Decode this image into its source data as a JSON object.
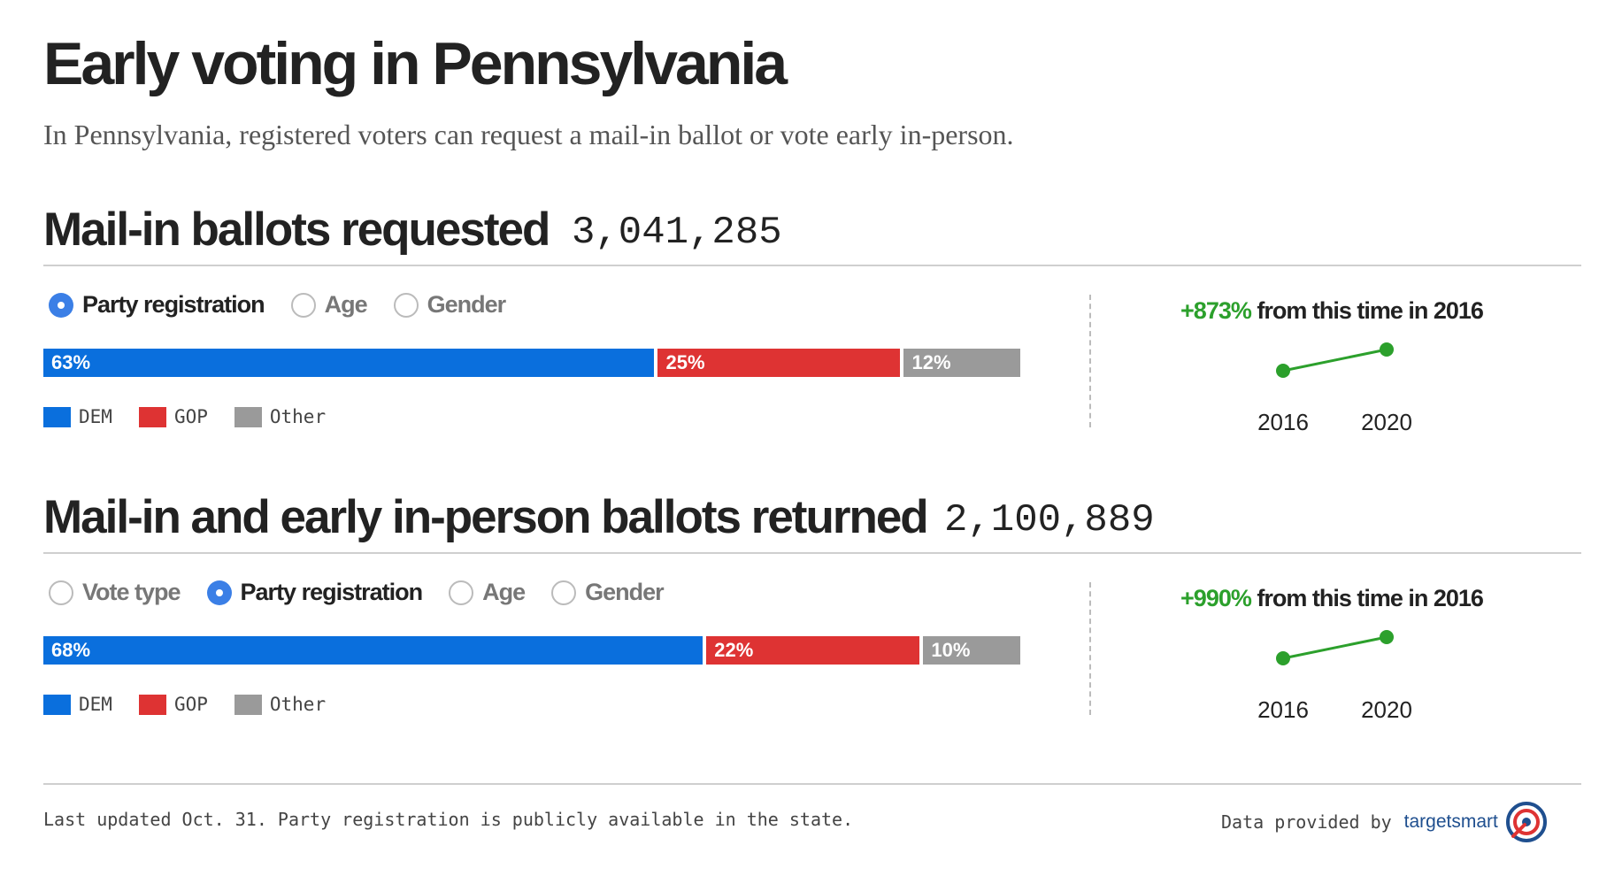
{
  "header": {
    "title": "Early voting in Pennsylvania",
    "subtitle": "In Pennsylvania, registered voters can request a mail-in ballot or vote early in-person."
  },
  "sections": [
    {
      "title": "Mail-in ballots requested",
      "total": "3,041,285",
      "options": [
        {
          "label": "Party registration",
          "selected": true
        },
        {
          "label": "Age",
          "selected": false
        },
        {
          "label": "Gender",
          "selected": false
        }
      ],
      "change": {
        "pct": "+873%",
        "text": " from this time in 2016"
      }
    },
    {
      "title": "Mail-in and early in-person ballots returned",
      "total": "2,100,889",
      "options": [
        {
          "label": "Vote type",
          "selected": false
        },
        {
          "label": "Party registration",
          "selected": true
        },
        {
          "label": "Age",
          "selected": false
        },
        {
          "label": "Gender",
          "selected": false
        }
      ],
      "change": {
        "pct": "+990%",
        "text": " from this time in 2016"
      }
    }
  ],
  "chart_data": [
    {
      "type": "bar",
      "stacked": true,
      "orientation": "horizontal",
      "title": "Mail-in ballots requested",
      "categories": [
        "DEM",
        "GOP",
        "Other"
      ],
      "values": [
        63,
        25,
        12
      ],
      "labels": [
        "63%",
        "25%",
        "12%"
      ],
      "unit": "%",
      "colors": [
        "#0a6fdd",
        "#de3333",
        "#9a9a9a"
      ],
      "legend": [
        "DEM",
        "GOP",
        "Other"
      ],
      "legend_position": "bottom-left"
    },
    {
      "type": "line",
      "title": "+873% from this time in 2016",
      "x": [
        "2016",
        "2020"
      ],
      "tick_labels": [
        "2016",
        "2020"
      ],
      "change_pct": 873,
      "color": "#2ca02c"
    },
    {
      "type": "bar",
      "stacked": true,
      "orientation": "horizontal",
      "title": "Mail-in and early in-person ballots returned",
      "categories": [
        "DEM",
        "GOP",
        "Other"
      ],
      "values": [
        68,
        22,
        10
      ],
      "labels": [
        "68%",
        "22%",
        "10%"
      ],
      "unit": "%",
      "colors": [
        "#0a6fdd",
        "#de3333",
        "#9a9a9a"
      ],
      "legend": [
        "DEM",
        "GOP",
        "Other"
      ],
      "legend_position": "bottom-left"
    },
    {
      "type": "line",
      "title": "+990% from this time in 2016",
      "x": [
        "2016",
        "2020"
      ],
      "tick_labels": [
        "2016",
        "2020"
      ],
      "change_pct": 990,
      "color": "#2ca02c"
    }
  ],
  "footer": {
    "note": "Last updated Oct. 31. Party registration is publicly available in the state.",
    "credit_label": "Data provided by",
    "logo_text": "targetsmart",
    "logo_icon": "target-icon"
  }
}
